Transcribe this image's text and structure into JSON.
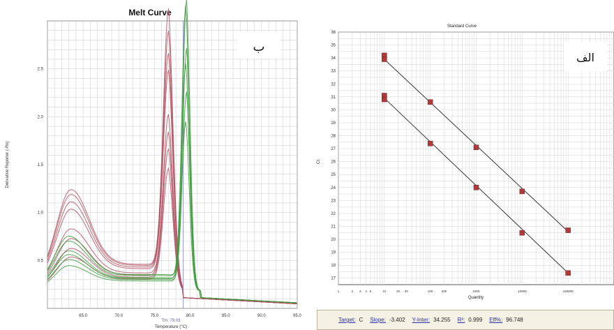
{
  "chart_data": [
    {
      "type": "line",
      "title": "Melt Curve",
      "xlabel": "Temperature (°C)",
      "ylabel": "Derivative Reporter (-Rn)",
      "xlim": [
        60.0,
        95.0
      ],
      "ylim": [
        0.0,
        3.0
      ],
      "x_ticks": [
        "65.0",
        "70.0",
        "75.0",
        "80.0",
        "85.0",
        "90.0",
        "95.0"
      ],
      "y_ticks": [
        "0.5",
        "1.0",
        "1.5",
        "2.0",
        "2.5"
      ],
      "tm_label": "Tm: 79.03",
      "grid": true,
      "panel_label": "ب",
      "colors": {
        "red": "#b05060",
        "green": "#3e9a3e",
        "threshold": "#9a9ad8"
      },
      "series_params": [
        {
          "color": "red",
          "peak_t": 77.0,
          "peak_h": 2.88,
          "peak_w": 1.05,
          "low_h": 1.0,
          "low_t": 63.3
        },
        {
          "color": "red",
          "peak_t": 77.0,
          "peak_h": 2.65,
          "peak_w": 1.05,
          "low_h": 0.96,
          "low_t": 63.3
        },
        {
          "color": "red",
          "peak_t": 77.0,
          "peak_h": 2.42,
          "peak_w": 1.05,
          "low_h": 0.9,
          "low_t": 63.3
        },
        {
          "color": "red",
          "peak_t": 77.0,
          "peak_h": 2.25,
          "peak_w": 1.05,
          "low_h": 0.84,
          "low_t": 63.3
        },
        {
          "color": "red",
          "peak_t": 77.0,
          "peak_h": 1.8,
          "peak_w": 1.05,
          "low_h": 0.68,
          "low_t": 63.3
        },
        {
          "color": "red",
          "peak_t": 77.0,
          "peak_h": 1.62,
          "peak_w": 1.05,
          "low_h": 0.6,
          "low_t": 63.3
        },
        {
          "color": "red",
          "peak_t": 77.0,
          "peak_h": 1.45,
          "peak_w": 1.05,
          "low_h": 0.52,
          "low_t": 63.3
        },
        {
          "color": "red",
          "peak_t": 77.0,
          "peak_h": 1.25,
          "peak_w": 1.05,
          "low_h": 0.45,
          "low_t": 63.3
        },
        {
          "color": "green",
          "peak_t": 79.5,
          "peak_h": 3.0,
          "peak_w": 0.8,
          "low_h": 0.62,
          "low_t": 63.0
        },
        {
          "color": "green",
          "peak_t": 79.4,
          "peak_h": 2.95,
          "peak_w": 0.8,
          "low_h": 0.58,
          "low_t": 63.0
        },
        {
          "color": "green",
          "peak_t": 79.5,
          "peak_h": 2.5,
          "peak_w": 0.8,
          "low_h": 0.5,
          "low_t": 63.0
        },
        {
          "color": "green",
          "peak_t": 79.4,
          "peak_h": 2.35,
          "peak_w": 0.8,
          "low_h": 0.47,
          "low_t": 63.0
        },
        {
          "color": "green",
          "peak_t": 79.5,
          "peak_h": 2.05,
          "peak_w": 0.8,
          "low_h": 0.43,
          "low_t": 63.0
        },
        {
          "color": "green",
          "peak_t": 79.4,
          "peak_h": 1.75,
          "peak_w": 0.8,
          "low_h": 0.38,
          "low_t": 63.0
        }
      ]
    },
    {
      "type": "scatter",
      "title": "Standard Curve",
      "xlabel": "Quantity",
      "ylabel": "Ct",
      "xscale": "log",
      "xlim": [
        1,
        1000000
      ],
      "ylim": [
        16.5,
        36.0
      ],
      "x_ticks": [
        "1",
        "2",
        "3",
        "4",
        "5",
        "10",
        "20",
        "30",
        "100",
        "200",
        "1000",
        "10000",
        "100000"
      ],
      "y_ticks": [
        "17",
        "18",
        "19",
        "20",
        "21",
        "22",
        "23",
        "24",
        "25",
        "26",
        "27",
        "28",
        "29",
        "30",
        "31",
        "32",
        "33",
        "34",
        "35",
        "36"
      ],
      "grid": true,
      "panel_label": "الف",
      "colors": {
        "marker": "#b03a3a",
        "line": "#333333"
      },
      "series": [
        {
          "x": [
            10,
            10,
            100,
            1000,
            10000,
            100000
          ],
          "y": [
            34.2,
            33.9,
            30.6,
            27.1,
            23.7,
            20.7
          ]
        },
        {
          "x": [
            10,
            10,
            100,
            1000,
            10000,
            100000
          ],
          "y": [
            31.1,
            30.8,
            27.4,
            24.0,
            20.5,
            17.4
          ]
        }
      ],
      "fit_lines": [
        {
          "x": [
            10,
            100000
          ],
          "y": [
            33.9,
            20.6
          ]
        },
        {
          "x": [
            10,
            100000
          ],
          "y": [
            30.9,
            17.4
          ]
        }
      ],
      "stats": {
        "target_label": "Target:",
        "target": "C",
        "slope_label": "Slope:",
        "slope": "-3.402",
        "yinter_label": "Y-Inter:",
        "yinter": "34.255",
        "r2_label": "R²:",
        "r2": "0.999",
        "eff_label": "Eff%:",
        "eff": "96.748"
      }
    }
  ]
}
